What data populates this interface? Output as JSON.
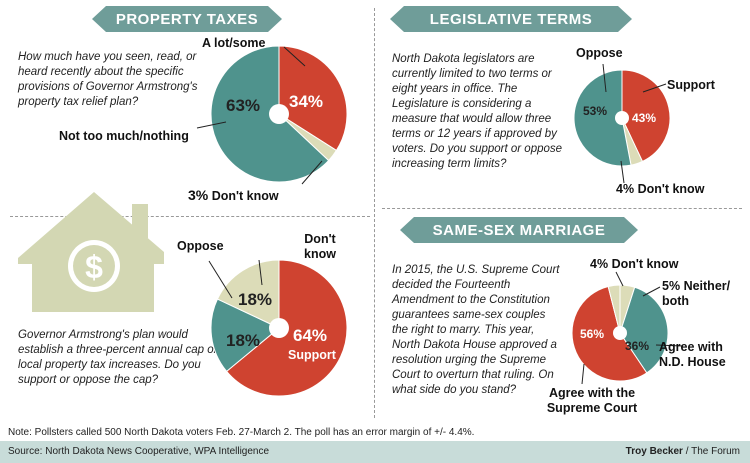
{
  "colors": {
    "red": "#cf4330",
    "teal": "#4f938d",
    "beige": "#dcdcb8",
    "banner": "#6f9d99",
    "house": "#d3d7b3"
  },
  "sections": {
    "property": {
      "title": "PROPERTY TAXES"
    },
    "legislative": {
      "title": "LEGISLATIVE TERMS"
    },
    "marriage": {
      "title": "SAME-SEX MARRIAGE"
    }
  },
  "questions": {
    "property_plan": "How much have you seen, read, or heard recently about the specific provisions of Governor Armstrong's property tax relief plan?",
    "property_cap": "Governor Armstrong's plan would establish a three-percent annual cap on local property tax increases. Do you support or oppose the cap?",
    "legislative": "North Dakota legislators are currently limited to two terms or eight years in office. The Legislature is considering a measure that would allow three terms or 12 years if approved by voters. Do you support or oppose increasing term limits?",
    "marriage": "In 2015, the U.S. Supreme Court decided the Fourteenth Amendment to the Constitution guarantees same-sex couples the right to marry. This year, North Dakota House approved a resolution urging the Supreme Court to overturn that ruling. On what side do you stand?"
  },
  "chart_data": [
    {
      "type": "pie",
      "id": "plan_awareness",
      "categories": [
        "A lot/some",
        "Not too much/nothing",
        "Don't know"
      ],
      "values": [
        34,
        63,
        3
      ],
      "labels": {
        "a": "A lot/some",
        "b": "Not too much/nothing",
        "c": "Don't know"
      },
      "pct": {
        "a": "34%",
        "b": "63%",
        "c": "3%"
      }
    },
    {
      "type": "pie",
      "id": "cap_support",
      "categories": [
        "Support",
        "Oppose",
        "Don't know"
      ],
      "values": [
        64,
        18,
        18
      ],
      "labels": {
        "a": "Support",
        "b": "Oppose",
        "c": "Don't know"
      },
      "pct": {
        "a": "64%",
        "b": "18%",
        "c": "18%"
      }
    },
    {
      "type": "pie",
      "id": "term_limits",
      "categories": [
        "Support",
        "Don't know",
        "Oppose"
      ],
      "values": [
        43,
        4,
        53
      ],
      "labels": {
        "a": "Support",
        "b": "Don't know",
        "c": "Oppose"
      },
      "pct": {
        "a": "43%",
        "b": "4%",
        "c": "53%"
      }
    },
    {
      "type": "pie",
      "id": "same_sex",
      "categories": [
        "Neither/both",
        "Agree with N.D. House",
        "Agree with the Supreme Court",
        "Don't know"
      ],
      "values": [
        5,
        36,
        56,
        4
      ],
      "labels": {
        "a": "Neither/ both",
        "b": "Agree with N.D. House",
        "c": "Agree with the Supreme Court",
        "d": "Don't know"
      },
      "pct": {
        "a": "5%",
        "b": "36%",
        "c": "56%",
        "d": "4%"
      }
    }
  ],
  "footer": {
    "note": "Note: Pollsters called 500 North Dakota voters Feb. 27-March 2. The poll has an error margin of +/- 4.4%.",
    "source": "Source: North Dakota News Cooperative, WPA Intelligence",
    "credit_author": "Troy Becker",
    "credit_sep": " / ",
    "credit_org": "The Forum"
  }
}
